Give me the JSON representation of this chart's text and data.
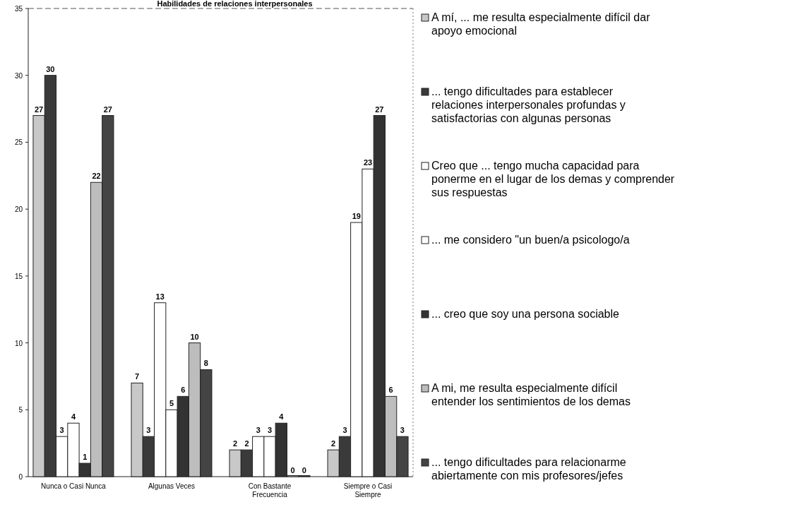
{
  "chart_data": {
    "type": "bar",
    "title": "Habilidades de relaciones interpersonales",
    "categories": [
      "Nunca o Casi Nunca",
      "Algunas Veces",
      "Con Bastante Frecuencia",
      "Siempre o Casi Siempre"
    ],
    "series": [
      {
        "name": "A mí, ... me resulta especialmente difícil dar apoyo emocional",
        "color": "#c8c8c8",
        "values": [
          27,
          7,
          2,
          2
        ]
      },
      {
        "name": "... tengo dificultades para establecer relaciones interpersonales profundas y satisfactorias con algunas personas",
        "color": "#3a3a3a",
        "values": [
          30,
          3,
          2,
          3
        ]
      },
      {
        "name": "Creo que ... tengo mucha capacidad para ponerme en el lugar de los demas y comprender sus respuestas",
        "color": "#ffffff",
        "values": [
          3,
          13,
          3,
          19
        ]
      },
      {
        "name": "... me considero \"un buen/a psicologo/a",
        "color": "#ffffff",
        "values": [
          4,
          5,
          3,
          23
        ]
      },
      {
        "name": "... creo que soy una persona sociable",
        "color": "#333333",
        "values": [
          1,
          6,
          4,
          27
        ]
      },
      {
        "name": "A mi, me resulta especialmente difícil entender los sentimientos de los demas",
        "color": "#bdbdbd",
        "values": [
          22,
          10,
          0,
          6
        ]
      },
      {
        "name": "... tengo dificultades para relacionarme abiertamente con mis profesores/jefes",
        "color": "#444444",
        "values": [
          27,
          8,
          0,
          3
        ]
      }
    ],
    "ylim": [
      0,
      35
    ],
    "yticks": [
      0,
      5,
      10,
      15,
      20,
      25,
      30,
      35
    ],
    "data_labels": true,
    "legend": "right"
  }
}
